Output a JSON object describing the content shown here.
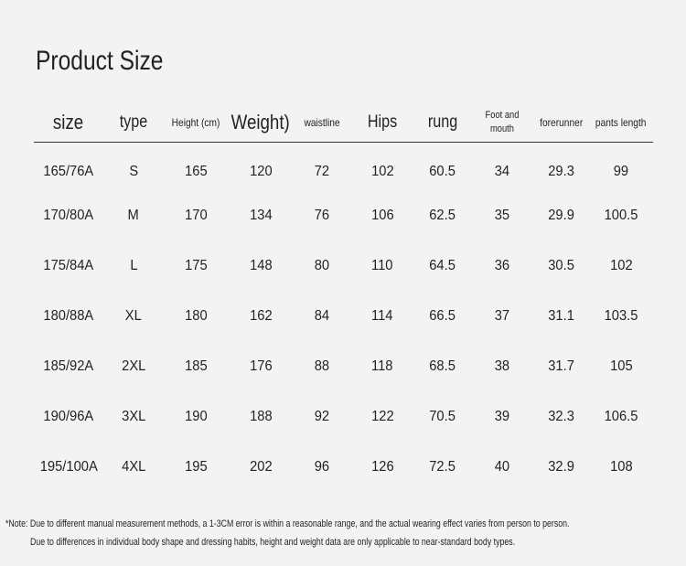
{
  "title": "Product Size",
  "headers": [
    "size",
    "type",
    "Height (cm)",
    "Weight)",
    "waistline",
    "Hips",
    "rung",
    "Foot and mouth",
    "forerunner",
    "pants length"
  ],
  "rows": [
    [
      "165/76A",
      "S",
      "165",
      "120",
      "72",
      "102",
      "60.5",
      "34",
      "29.3",
      "99"
    ],
    [
      "170/80A",
      "M",
      "170",
      "134",
      "76",
      "106",
      "62.5",
      "35",
      "29.9",
      "100.5"
    ],
    [
      "175/84A",
      "L",
      "175",
      "148",
      "80",
      "110",
      "64.5",
      "36",
      "30.5",
      "102"
    ],
    [
      "180/88A",
      "XL",
      "180",
      "162",
      "84",
      "114",
      "66.5",
      "37",
      "31.1",
      "103.5"
    ],
    [
      "185/92A",
      "2XL",
      "185",
      "176",
      "88",
      "118",
      "68.5",
      "38",
      "31.7",
      "105"
    ],
    [
      "190/96A",
      "3XL",
      "190",
      "188",
      "92",
      "122",
      "70.5",
      "39",
      "32.3",
      "106.5"
    ],
    [
      "195/100A",
      "4XL",
      "195",
      "202",
      "96",
      "126",
      "72.5",
      "40",
      "32.9",
      "108"
    ]
  ],
  "notes": [
    "*Note: Due to different manual measurement methods, a 1-3CM error is within a reasonable range, and the actual wearing effect varies from person to person.",
    "Due to differences in individual body shape and dressing habits, height and weight data are only applicable to near-standard body types."
  ],
  "colors": {
    "background": "#f3f3f3",
    "text": "#222222",
    "rule": "#333333"
  }
}
